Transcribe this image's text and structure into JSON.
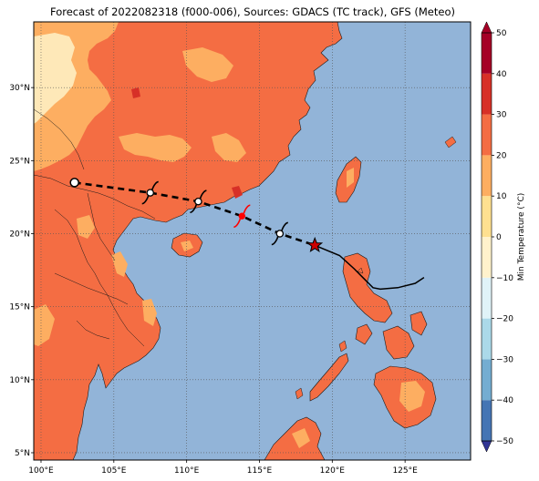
{
  "title": "Forecast of 2022082318 (f000-006), Sources: GDACS (TC track), GFS (Meteo)",
  "map": {
    "lon_range": [
      99.5,
      129.5
    ],
    "lat_range": [
      4.5,
      34.5
    ],
    "x_ticks": [
      "100°E",
      "105°E",
      "110°E",
      "115°E",
      "120°E",
      "125°E"
    ],
    "y_ticks": [
      "5°N",
      "10°N",
      "15°N",
      "20°N",
      "25°N",
      "30°N"
    ],
    "ocean_color": "#92b4d8",
    "gridlines": true,
    "gridline_style": "dotted"
  },
  "colorbar": {
    "label": "Min Temperature (°C)",
    "ticks": [
      "−50",
      "−40",
      "−30",
      "−20",
      "−10",
      "0",
      "10",
      "20",
      "30",
      "40",
      "50"
    ],
    "extend": "both",
    "colors": [
      "#313695",
      "#4575b4",
      "#74add1",
      "#abd9e9",
      "#e0f3f8",
      "#fff2cc",
      "#fee090",
      "#fdae61",
      "#f46d43",
      "#d73027",
      "#a50026"
    ]
  },
  "track": {
    "forecast_points": [
      {
        "lon": 102.3,
        "lat": 23.5
      },
      {
        "lon": 107.5,
        "lat": 22.8
      },
      {
        "lon": 110.8,
        "lat": 22.2
      },
      {
        "lon": 113.8,
        "lat": 21.2
      },
      {
        "lon": 116.4,
        "lat": 20.0
      },
      {
        "lon": 118.8,
        "lat": 19.2
      }
    ],
    "observed_points": [
      {
        "lon": 118.8,
        "lat": 19.2
      },
      {
        "lon": 120.5,
        "lat": 18.5
      },
      {
        "lon": 121.5,
        "lat": 17.6
      },
      {
        "lon": 122.3,
        "lat": 16.8
      },
      {
        "lon": 122.8,
        "lat": 16.3
      },
      {
        "lon": 123.3,
        "lat": 16.2
      },
      {
        "lon": 124.5,
        "lat": 16.3
      },
      {
        "lon": 125.7,
        "lat": 16.6
      },
      {
        "lon": 126.3,
        "lat": 17.0
      }
    ],
    "current_position": {
      "lon": 118.8,
      "lat": 19.2
    },
    "current_marker_color": "#cc0000",
    "highlight_symbol_color": "#ff0000"
  }
}
